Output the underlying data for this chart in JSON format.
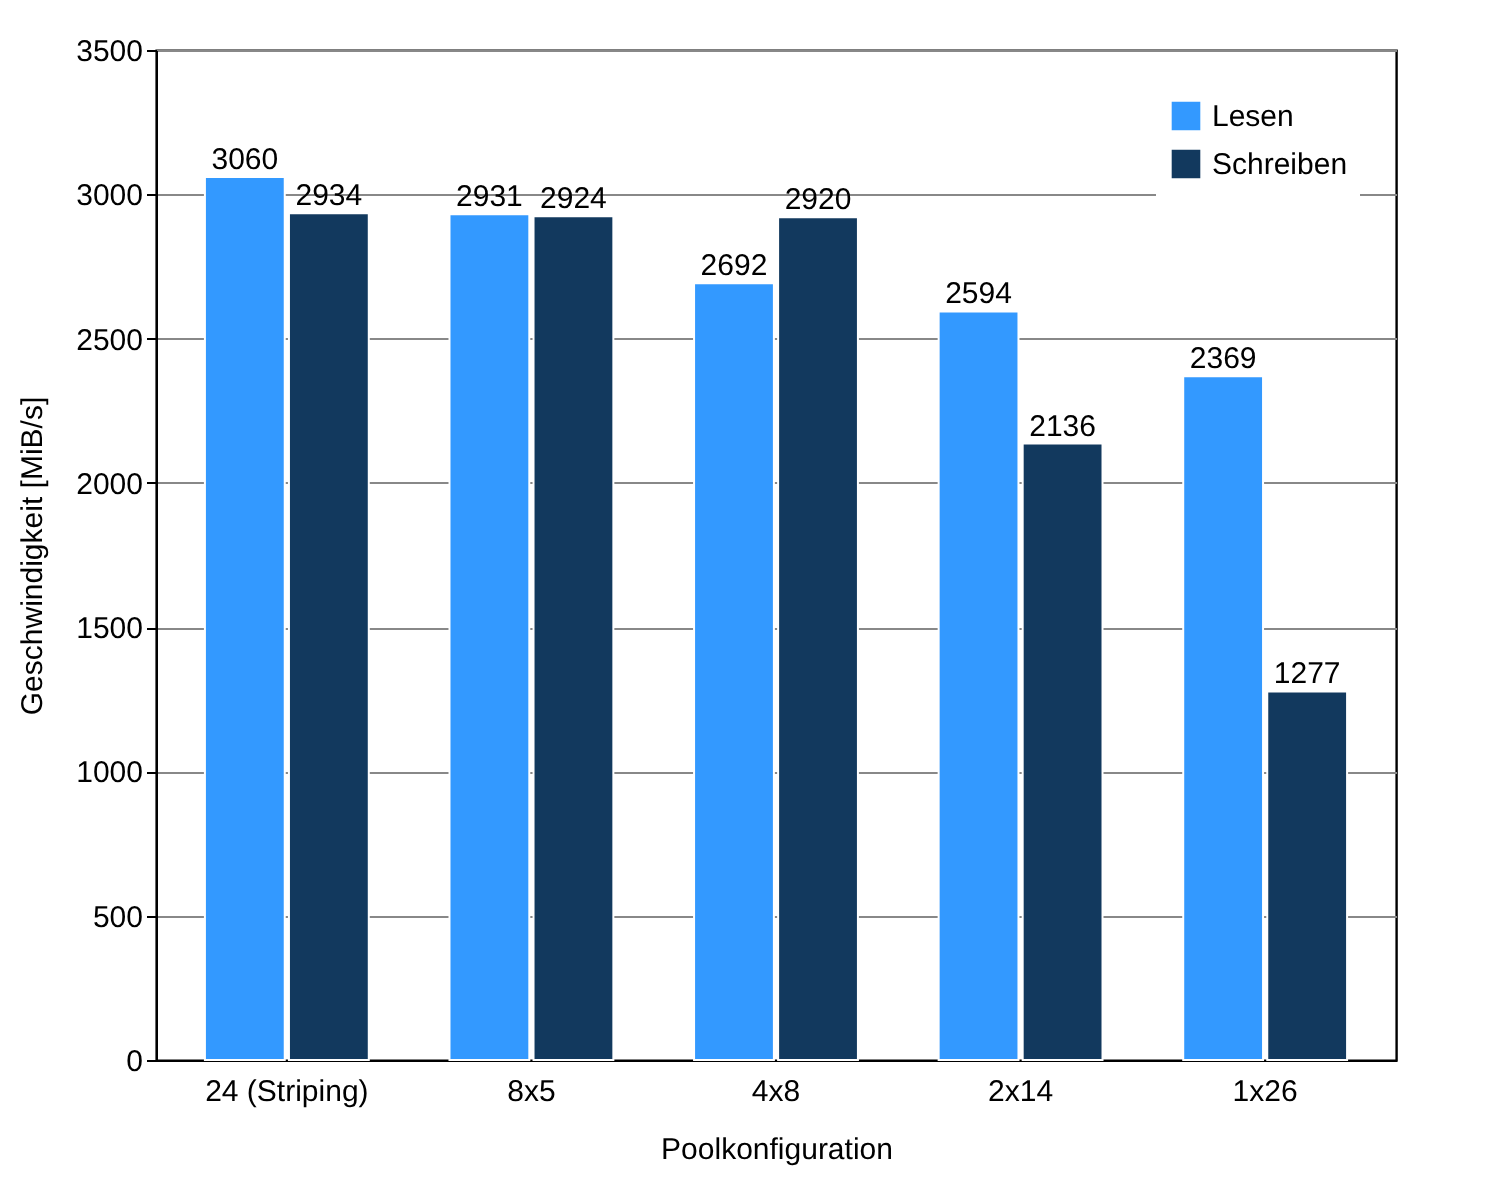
{
  "chart_data": {
    "type": "bar",
    "xlabel": "Poolkonfiguration",
    "ylabel": "Geschwindigkeit [MiB/s]",
    "categories": [
      "24 (Striping)",
      "8x5",
      "4x8",
      "2x14",
      "1x26"
    ],
    "series": [
      {
        "name": "Lesen",
        "color": "#3399ff",
        "values": [
          3060,
          2931,
          2692,
          2594,
          2369
        ]
      },
      {
        "name": "Schreiben",
        "color": "#12395e",
        "values": [
          2934,
          2924,
          2920,
          2136,
          1277
        ]
      }
    ],
    "ylim": [
      0,
      3500
    ],
    "yticks": [
      0,
      500,
      1000,
      1500,
      2000,
      2500,
      3000,
      3500
    ],
    "grid": "y",
    "legend": "top right",
    "data_labels": true
  }
}
